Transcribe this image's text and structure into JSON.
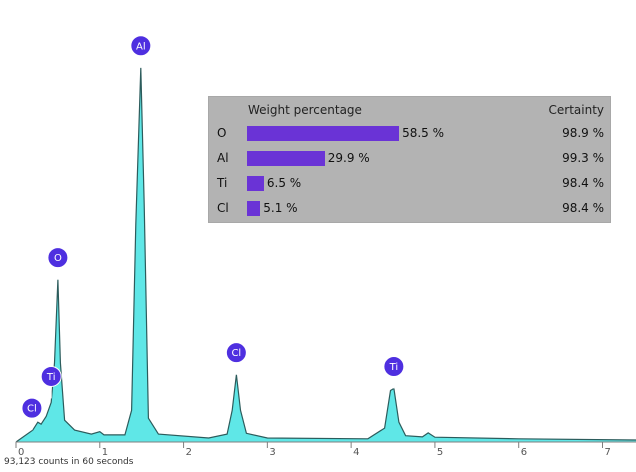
{
  "chart_data": {
    "type": "area",
    "x_ticks": [
      "0",
      "1",
      "2",
      "3",
      "4",
      "5",
      "6",
      "7"
    ],
    "xlim": [
      0,
      7.4
    ],
    "ylim": [
      0,
      100
    ],
    "spectrum_points": [
      [
        0.0,
        0.0
      ],
      [
        0.2,
        3.0
      ],
      [
        0.26,
        5.0
      ],
      [
        0.3,
        4.5
      ],
      [
        0.36,
        6.5
      ],
      [
        0.42,
        10.0
      ],
      [
        0.46,
        20.0
      ],
      [
        0.5,
        41.0
      ],
      [
        0.53,
        20.0
      ],
      [
        0.58,
        5.5
      ],
      [
        0.7,
        3.0
      ],
      [
        0.9,
        2.0
      ],
      [
        1.0,
        2.6
      ],
      [
        1.05,
        1.8
      ],
      [
        1.3,
        1.8
      ],
      [
        1.38,
        8.0
      ],
      [
        1.43,
        55.0
      ],
      [
        1.49,
        94.5
      ],
      [
        1.53,
        60.0
      ],
      [
        1.58,
        6.0
      ],
      [
        1.7,
        2.0
      ],
      [
        2.3,
        1.0
      ],
      [
        2.52,
        2.0
      ],
      [
        2.58,
        8.0
      ],
      [
        2.63,
        17.0
      ],
      [
        2.68,
        8.0
      ],
      [
        2.75,
        2.2
      ],
      [
        3.0,
        1.0
      ],
      [
        4.2,
        0.8
      ],
      [
        4.4,
        3.5
      ],
      [
        4.47,
        13.0
      ],
      [
        4.51,
        13.5
      ],
      [
        4.57,
        5.0
      ],
      [
        4.65,
        1.6
      ],
      [
        4.85,
        1.3
      ],
      [
        4.92,
        2.3
      ],
      [
        5.0,
        1.2
      ],
      [
        6.0,
        0.8
      ],
      [
        7.4,
        0.5
      ]
    ],
    "peaks": [
      {
        "label": "Cl",
        "x": 0.19,
        "y": 3.0
      },
      {
        "label": "Ti",
        "x": 0.42,
        "y": 11.0
      },
      {
        "label": "O",
        "x": 0.5,
        "y": 41.0
      },
      {
        "label": "Al",
        "x": 1.49,
        "y": 94.5
      },
      {
        "label": "Cl",
        "x": 2.63,
        "y": 17.0
      },
      {
        "label": "Ti",
        "x": 4.51,
        "y": 13.5
      }
    ],
    "colors": {
      "spectrum_fill": "#5fe7e7",
      "spectrum_line": "#2c5c5c",
      "peak_marker": "#4e2fe0",
      "axis": "#7f7f7f"
    }
  },
  "footer": {
    "counts": "93,123 counts in 60 seconds"
  },
  "weight_table": {
    "header": "Weight percentage",
    "certainty_header": "Certainty",
    "bar_color": "#6a33d6",
    "rows": [
      {
        "element": "O",
        "weight": 58.5,
        "weight_label": "58.5 %",
        "certainty": "98.9 %"
      },
      {
        "element": "Al",
        "weight": 29.9,
        "weight_label": "29.9 %",
        "certainty": "99.3 %"
      },
      {
        "element": "Ti",
        "weight": 6.5,
        "weight_label": "6.5 %",
        "certainty": "98.4 %"
      },
      {
        "element": "Cl",
        "weight": 5.1,
        "weight_label": "5.1 %",
        "certainty": "98.4 %"
      }
    ]
  }
}
